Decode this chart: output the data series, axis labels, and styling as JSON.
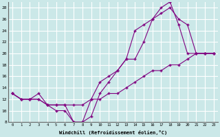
{
  "xlabel": "Windchill (Refroidissement éolien,°C)",
  "background_color": "#cbe8e8",
  "line_color": "#800080",
  "grid_color": "#ffffff",
  "xlim": [
    -0.5,
    23.5
  ],
  "ylim": [
    8,
    29
  ],
  "xticks": [
    0,
    1,
    2,
    3,
    4,
    5,
    6,
    7,
    8,
    9,
    10,
    11,
    12,
    13,
    14,
    15,
    16,
    17,
    18,
    19,
    20,
    21,
    22,
    23
  ],
  "yticks": [
    8,
    10,
    12,
    14,
    16,
    18,
    20,
    22,
    24,
    26,
    28
  ],
  "line1_x": [
    0,
    1,
    2,
    3,
    4,
    5,
    6,
    7,
    8,
    9,
    10,
    11,
    12,
    13,
    14,
    15,
    16,
    17,
    18,
    19,
    20,
    21,
    22,
    23
  ],
  "line1_y": [
    13,
    12,
    12,
    13,
    11,
    10,
    10,
    8,
    8,
    12,
    15,
    16,
    17,
    19,
    19,
    22,
    26,
    27,
    28,
    26,
    25,
    20,
    20,
    20
  ],
  "line2_x": [
    0,
    1,
    2,
    3,
    4,
    5,
    6,
    7,
    8,
    9,
    10,
    11,
    12,
    13,
    14,
    15,
    16,
    17,
    18,
    19,
    20,
    21,
    22,
    23
  ],
  "line2_y": [
    13,
    12,
    12,
    12,
    11,
    11,
    11,
    8,
    8,
    9,
    13,
    15,
    17,
    19,
    24,
    25,
    26,
    28,
    29,
    25,
    20,
    20,
    20,
    20
  ],
  "line3_x": [
    0,
    1,
    2,
    3,
    4,
    5,
    6,
    7,
    8,
    9,
    10,
    11,
    12,
    13,
    14,
    15,
    16,
    17,
    18,
    19,
    20,
    21,
    22,
    23
  ],
  "line3_y": [
    13,
    12,
    12,
    12,
    11,
    11,
    11,
    11,
    11,
    12,
    12,
    13,
    13,
    14,
    15,
    16,
    17,
    17,
    18,
    18,
    19,
    20,
    20,
    20
  ]
}
